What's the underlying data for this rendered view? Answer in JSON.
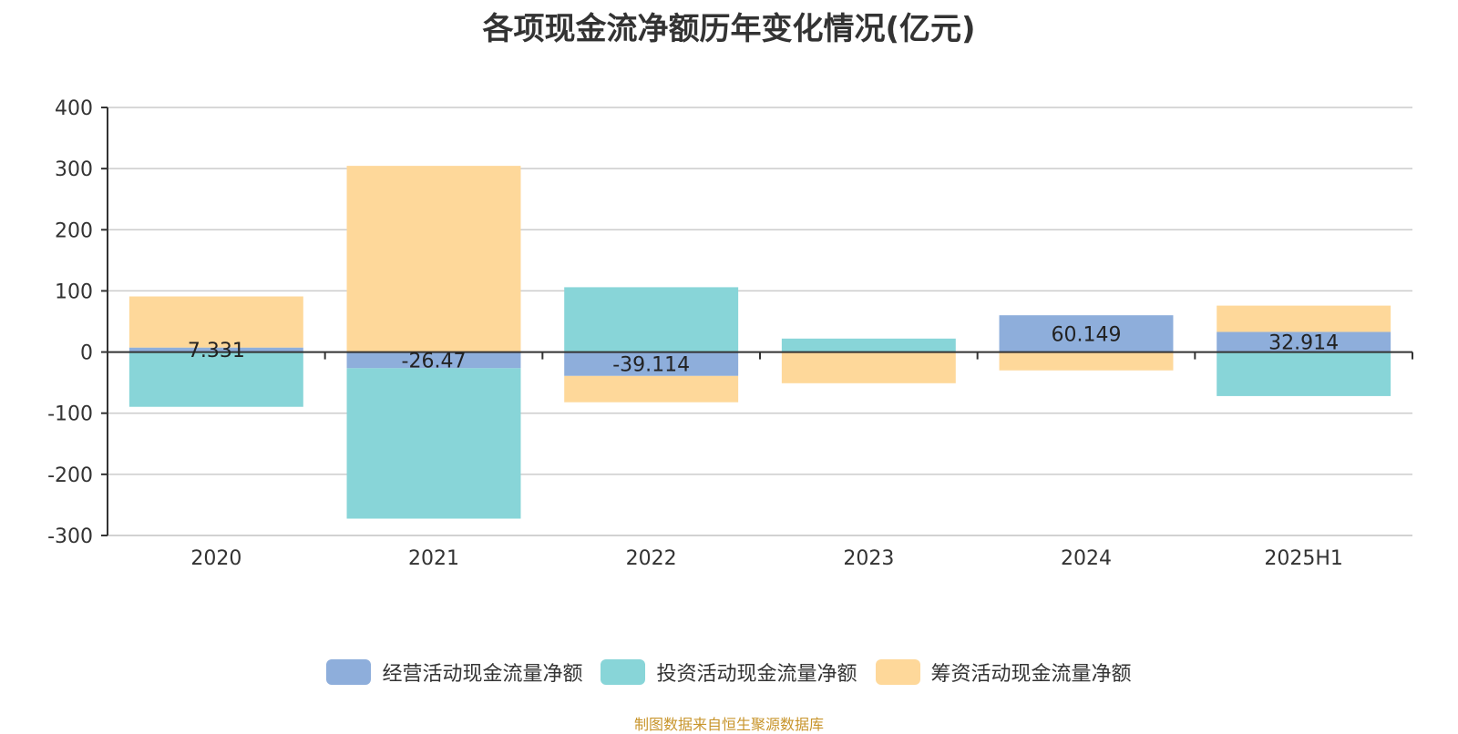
{
  "title": "各项现金流净额历年变化情况(亿元)",
  "source_note": "制图数据来自恒生聚源数据库",
  "legend": [
    {
      "label": "经营活动现金流量净额",
      "color": "#8eaedb"
    },
    {
      "label": "投资活动现金流量净额",
      "color": "#88d5d8"
    },
    {
      "label": "筹资活动现金流量净额",
      "color": "#fed89a"
    }
  ],
  "chart_data": {
    "type": "bar",
    "stacked": true,
    "title": "各项现金流净额历年变化情况(亿元)",
    "xlabel": "",
    "ylabel": "",
    "categories": [
      "2020",
      "2021",
      "2022",
      "2023",
      "2024",
      "2025H1"
    ],
    "ylim": [
      -300,
      400
    ],
    "yticks": [
      400,
      300,
      200,
      100,
      0,
      -100,
      -200,
      -300
    ],
    "grid": true,
    "legend_position": "bottom",
    "series": [
      {
        "name": "经营活动现金流量净额",
        "color": "#8eaedb",
        "values": [
          7.331,
          -26.47,
          -39.114,
          1.0,
          60.149,
          32.914
        ],
        "labels": [
          "7.331",
          "-26.47",
          "-39.114",
          "",
          "60.149",
          "32.914"
        ]
      },
      {
        "name": "投资活动现金流量净额",
        "color": "#88d5d8",
        "values": [
          -89.6,
          -246.0,
          106.0,
          21.0,
          0.0,
          -72.0
        ]
      },
      {
        "name": "筹资活动现金流量净额",
        "color": "#fed89a",
        "values": [
          83.6,
          304.5,
          -43.0,
          -51.0,
          -30.0,
          43.0
        ]
      }
    ]
  }
}
